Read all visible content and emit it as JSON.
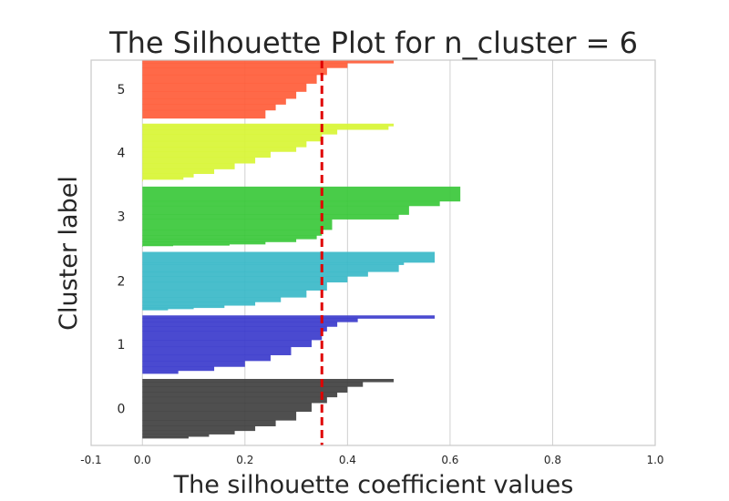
{
  "chart_data": {
    "type": "silhouette",
    "title": "The Silhouette Plot for n_cluster = 6",
    "xlabel": "The silhouette coefficient values",
    "ylabel": "Cluster label",
    "xlim": [
      -0.1,
      1.0
    ],
    "xticks": [
      -0.1,
      0.0,
      0.2,
      0.4,
      0.6,
      0.8,
      1.0
    ],
    "xtick_labels": [
      "-0.1",
      "0.0",
      "0.2",
      "0.4",
      "0.6",
      "0.8",
      "1.0"
    ],
    "grid": true,
    "average_silhouette": 0.35,
    "clusters": [
      {
        "label": "0",
        "color": "#404040",
        "steps": [
          [
            0.49,
            0.05
          ],
          [
            0.43,
            0.08
          ],
          [
            0.4,
            0.1
          ],
          [
            0.38,
            0.08
          ],
          [
            0.36,
            0.1
          ],
          [
            0.33,
            0.15
          ],
          [
            0.3,
            0.15
          ],
          [
            0.26,
            0.1
          ],
          [
            0.22,
            0.08
          ],
          [
            0.18,
            0.06
          ],
          [
            0.13,
            0.04
          ],
          [
            0.09,
            0.03
          ]
        ]
      },
      {
        "label": "1",
        "color": "#3b3bcc",
        "steps": [
          [
            0.57,
            0.05
          ],
          [
            0.42,
            0.06
          ],
          [
            0.38,
            0.08
          ],
          [
            0.36,
            0.08
          ],
          [
            0.35,
            0.15
          ],
          [
            0.33,
            0.12
          ],
          [
            0.29,
            0.14
          ],
          [
            0.25,
            0.1
          ],
          [
            0.2,
            0.1
          ],
          [
            0.14,
            0.07
          ],
          [
            0.07,
            0.05
          ]
        ]
      },
      {
        "label": "2",
        "color": "#3ab8c8",
        "steps": [
          [
            0.57,
            0.18
          ],
          [
            0.51,
            0.04
          ],
          [
            0.5,
            0.12
          ],
          [
            0.44,
            0.08
          ],
          [
            0.4,
            0.1
          ],
          [
            0.36,
            0.14
          ],
          [
            0.32,
            0.12
          ],
          [
            0.27,
            0.08
          ],
          [
            0.22,
            0.06
          ],
          [
            0.16,
            0.04
          ],
          [
            0.1,
            0.02
          ],
          [
            0.05,
            0.02
          ]
        ]
      },
      {
        "label": "3",
        "color": "#3ac83a",
        "steps": [
          [
            0.62,
            0.25
          ],
          [
            0.58,
            0.08
          ],
          [
            0.52,
            0.15
          ],
          [
            0.5,
            0.08
          ],
          [
            0.37,
            0.18
          ],
          [
            0.35,
            0.1
          ],
          [
            0.34,
            0.06
          ],
          [
            0.3,
            0.05
          ],
          [
            0.24,
            0.04
          ],
          [
            0.17,
            0.02
          ],
          [
            0.06,
            0.01
          ],
          [
            0.0,
            0.01
          ]
        ]
      },
      {
        "label": "4",
        "color": "#d8f535",
        "steps": [
          [
            0.49,
            0.04
          ],
          [
            0.48,
            0.06
          ],
          [
            0.38,
            0.08
          ],
          [
            0.35,
            0.12
          ],
          [
            0.32,
            0.1
          ],
          [
            0.3,
            0.08
          ],
          [
            0.25,
            0.1
          ],
          [
            0.22,
            0.1
          ],
          [
            0.18,
            0.1
          ],
          [
            0.14,
            0.08
          ],
          [
            0.1,
            0.06
          ],
          [
            0.08,
            0.04
          ],
          [
            0.0,
            0.03
          ]
        ]
      },
      {
        "label": "5",
        "color": "#ff5c38",
        "steps": [
          [
            0.49,
            0.05
          ],
          [
            0.4,
            0.08
          ],
          [
            0.36,
            0.12
          ],
          [
            0.34,
            0.15
          ],
          [
            0.32,
            0.14
          ],
          [
            0.3,
            0.12
          ],
          [
            0.28,
            0.1
          ],
          [
            0.26,
            0.1
          ],
          [
            0.24,
            0.14
          ]
        ]
      }
    ]
  }
}
